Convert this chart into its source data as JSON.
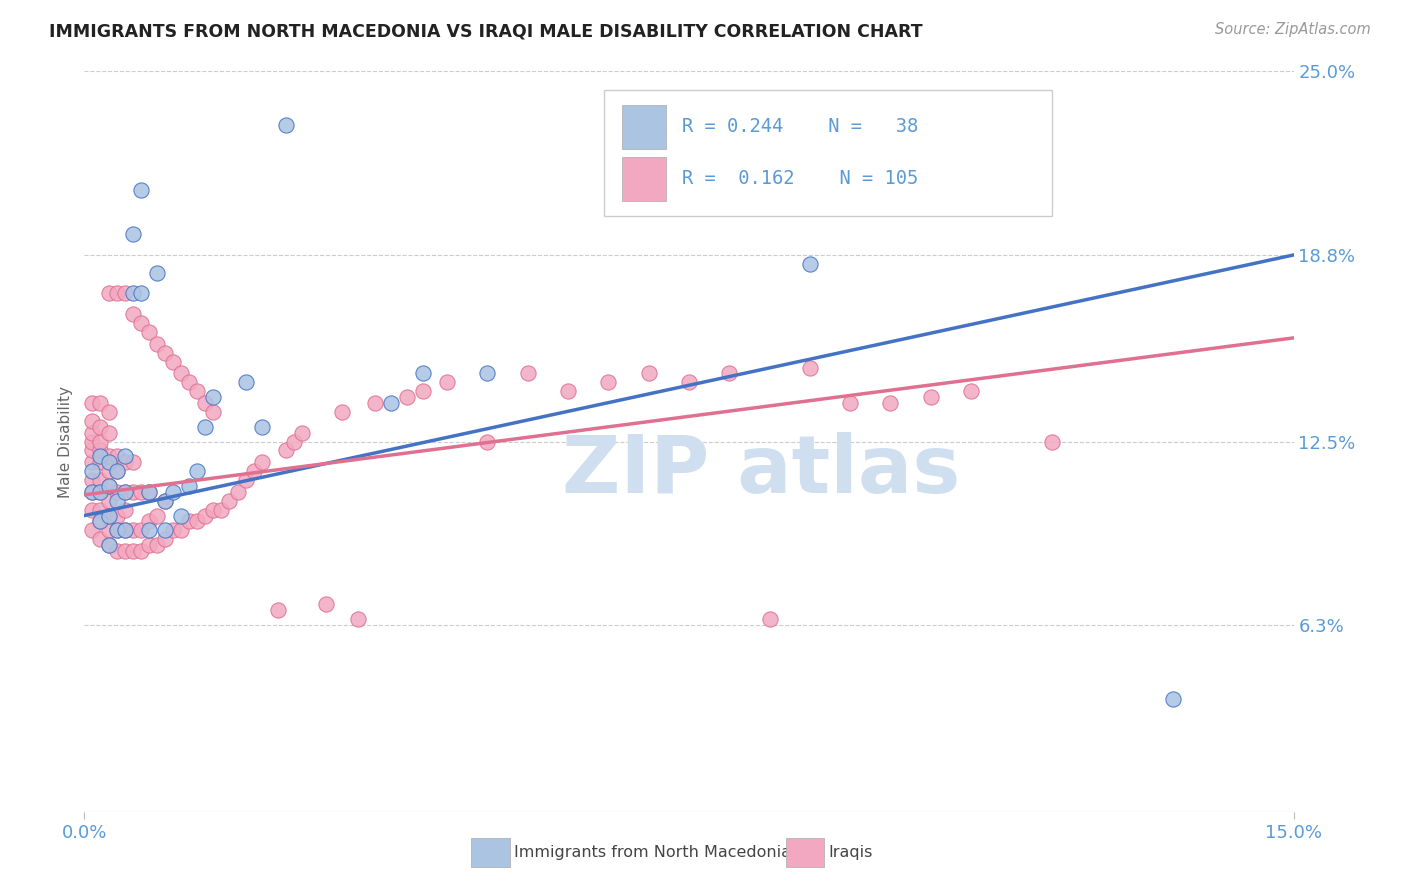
{
  "title": "IMMIGRANTS FROM NORTH MACEDONIA VS IRAQI MALE DISABILITY CORRELATION CHART",
  "source_text": "Source: ZipAtlas.com",
  "ylabel": "Male Disability",
  "xlim": [
    0.0,
    0.15
  ],
  "ylim": [
    0.0,
    0.25
  ],
  "xtick_labels": [
    "0.0%",
    "15.0%"
  ],
  "ytick_positions": [
    0.063,
    0.125,
    0.188,
    0.25
  ],
  "ytick_labels": [
    "6.3%",
    "12.5%",
    "18.8%",
    "25.0%"
  ],
  "color_blue": "#aac4e2",
  "color_pink": "#f2a8c0",
  "line_blue": "#4472c4",
  "line_pink": "#e07090",
  "watermark_color": "#d0dff0",
  "blue_r": "0.244",
  "blue_n": "38",
  "pink_r": "0.162",
  "pink_n": "105",
  "blue_scatter_x": [
    0.001,
    0.001,
    0.002,
    0.002,
    0.002,
    0.003,
    0.003,
    0.003,
    0.003,
    0.004,
    0.004,
    0.004,
    0.005,
    0.005,
    0.005,
    0.006,
    0.006,
    0.007,
    0.007,
    0.008,
    0.008,
    0.009,
    0.01,
    0.01,
    0.011,
    0.012,
    0.013,
    0.014,
    0.015,
    0.016,
    0.02,
    0.022,
    0.025,
    0.038,
    0.042,
    0.05,
    0.09,
    0.135
  ],
  "blue_scatter_y": [
    0.108,
    0.115,
    0.098,
    0.108,
    0.12,
    0.09,
    0.1,
    0.11,
    0.118,
    0.095,
    0.105,
    0.115,
    0.095,
    0.108,
    0.12,
    0.175,
    0.195,
    0.175,
    0.21,
    0.095,
    0.108,
    0.182,
    0.095,
    0.105,
    0.108,
    0.1,
    0.11,
    0.115,
    0.13,
    0.14,
    0.145,
    0.13,
    0.232,
    0.138,
    0.148,
    0.148,
    0.185,
    0.038
  ],
  "pink_scatter_x": [
    0.001,
    0.001,
    0.001,
    0.001,
    0.001,
    0.001,
    0.001,
    0.001,
    0.001,
    0.001,
    0.002,
    0.002,
    0.002,
    0.002,
    0.002,
    0.002,
    0.002,
    0.002,
    0.002,
    0.002,
    0.003,
    0.003,
    0.003,
    0.003,
    0.003,
    0.003,
    0.003,
    0.003,
    0.003,
    0.003,
    0.004,
    0.004,
    0.004,
    0.004,
    0.004,
    0.004,
    0.004,
    0.005,
    0.005,
    0.005,
    0.005,
    0.005,
    0.005,
    0.006,
    0.006,
    0.006,
    0.006,
    0.006,
    0.007,
    0.007,
    0.007,
    0.007,
    0.008,
    0.008,
    0.008,
    0.008,
    0.009,
    0.009,
    0.009,
    0.01,
    0.01,
    0.01,
    0.011,
    0.011,
    0.012,
    0.012,
    0.013,
    0.013,
    0.014,
    0.014,
    0.015,
    0.015,
    0.016,
    0.016,
    0.017,
    0.018,
    0.019,
    0.02,
    0.021,
    0.022,
    0.024,
    0.025,
    0.026,
    0.027,
    0.03,
    0.032,
    0.034,
    0.036,
    0.04,
    0.042,
    0.045,
    0.05,
    0.055,
    0.06,
    0.065,
    0.07,
    0.075,
    0.08,
    0.085,
    0.09,
    0.095,
    0.1,
    0.105,
    0.11,
    0.12
  ],
  "pink_scatter_y": [
    0.095,
    0.102,
    0.108,
    0.112,
    0.118,
    0.122,
    0.125,
    0.128,
    0.132,
    0.138,
    0.092,
    0.098,
    0.102,
    0.108,
    0.112,
    0.118,
    0.122,
    0.125,
    0.13,
    0.138,
    0.09,
    0.095,
    0.1,
    0.105,
    0.11,
    0.115,
    0.12,
    0.128,
    0.135,
    0.175,
    0.088,
    0.095,
    0.1,
    0.108,
    0.115,
    0.12,
    0.175,
    0.088,
    0.095,
    0.102,
    0.108,
    0.118,
    0.175,
    0.088,
    0.095,
    0.108,
    0.118,
    0.168,
    0.088,
    0.095,
    0.108,
    0.165,
    0.09,
    0.098,
    0.108,
    0.162,
    0.09,
    0.1,
    0.158,
    0.092,
    0.105,
    0.155,
    0.095,
    0.152,
    0.095,
    0.148,
    0.098,
    0.145,
    0.098,
    0.142,
    0.1,
    0.138,
    0.102,
    0.135,
    0.102,
    0.105,
    0.108,
    0.112,
    0.115,
    0.118,
    0.068,
    0.122,
    0.125,
    0.128,
    0.07,
    0.135,
    0.065,
    0.138,
    0.14,
    0.142,
    0.145,
    0.125,
    0.148,
    0.142,
    0.145,
    0.148,
    0.145,
    0.148,
    0.065,
    0.15,
    0.138,
    0.138,
    0.14,
    0.142,
    0.125
  ]
}
